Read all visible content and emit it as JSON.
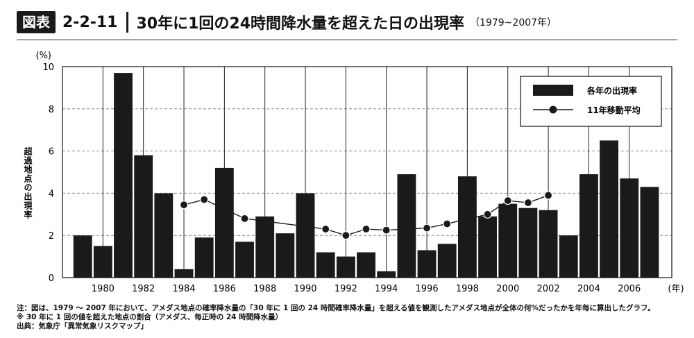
{
  "header": {
    "badge": "図表",
    "fig_number": "2-2-11",
    "title": "30年に1回の24時間降水量を超えた日の出現率",
    "period": "（1979~2007年）"
  },
  "notes": [
    "注：図は、1979 ～ 2007 年において、アメダス地点の確率降水量の「30 年に 1 回の 24 時間確率降水量」を超える値を観測したアメダス地点が全体の何%だったかを年毎に算出したグラフ。",
    "※ 30 年に 1 回の値を超えた地点の割合（アメダス、毎正時の 24 時間降水量）",
    "出典：気象庁「異常気象リスクマップ」"
  ],
  "chart_data": {
    "type": "bar",
    "x": [
      1979,
      1980,
      1981,
      1982,
      1983,
      1984,
      1985,
      1986,
      1987,
      1988,
      1989,
      1990,
      1991,
      1992,
      1993,
      1994,
      1995,
      1996,
      1997,
      1998,
      1999,
      2000,
      2001,
      2002,
      2003,
      2004,
      2005,
      2006,
      2007
    ],
    "series": [
      {
        "name": "各年の出現率",
        "kind": "bar",
        "values": [
          2.0,
          1.5,
          9.7,
          5.8,
          4.0,
          0.4,
          1.9,
          5.2,
          1.7,
          2.9,
          2.1,
          4.0,
          1.2,
          1.0,
          1.2,
          0.3,
          4.9,
          1.3,
          1.6,
          4.8,
          2.9,
          3.5,
          3.3,
          3.2,
          2.0,
          4.9,
          6.5,
          4.7,
          4.3
        ]
      },
      {
        "name": "11年移動平均",
        "kind": "line",
        "x": [
          1984,
          1985,
          1986,
          1987,
          1988,
          1989,
          1990,
          1991,
          1992,
          1993,
          1994,
          1995,
          1996,
          1997,
          1998,
          1999,
          2000,
          2001,
          2002
        ],
        "values": [
          3.45,
          3.7,
          null,
          2.8,
          null,
          null,
          null,
          2.3,
          2.0,
          2.3,
          2.25,
          null,
          2.35,
          2.55,
          null,
          3.0,
          3.65,
          3.55,
          3.9
        ]
      }
    ],
    "x_tick_labels": [
      "1980",
      "1982",
      "1984",
      "1986",
      "1988",
      "1990",
      "1992",
      "1994",
      "1996",
      "1998",
      "2000",
      "2002",
      "2004",
      "2006"
    ],
    "y_ticks": [
      0,
      2,
      4,
      6,
      8,
      10
    ],
    "ylim": [
      0,
      10
    ],
    "xlabel": "(年)",
    "ylabel": "超過地点の出現率",
    "y_unit": "(%)",
    "grid": "horizontal-dashed",
    "legend": "top-right",
    "colors": {
      "bar": "#1a1a1a",
      "line": "#1a1a1a",
      "grid": "#888888"
    }
  }
}
